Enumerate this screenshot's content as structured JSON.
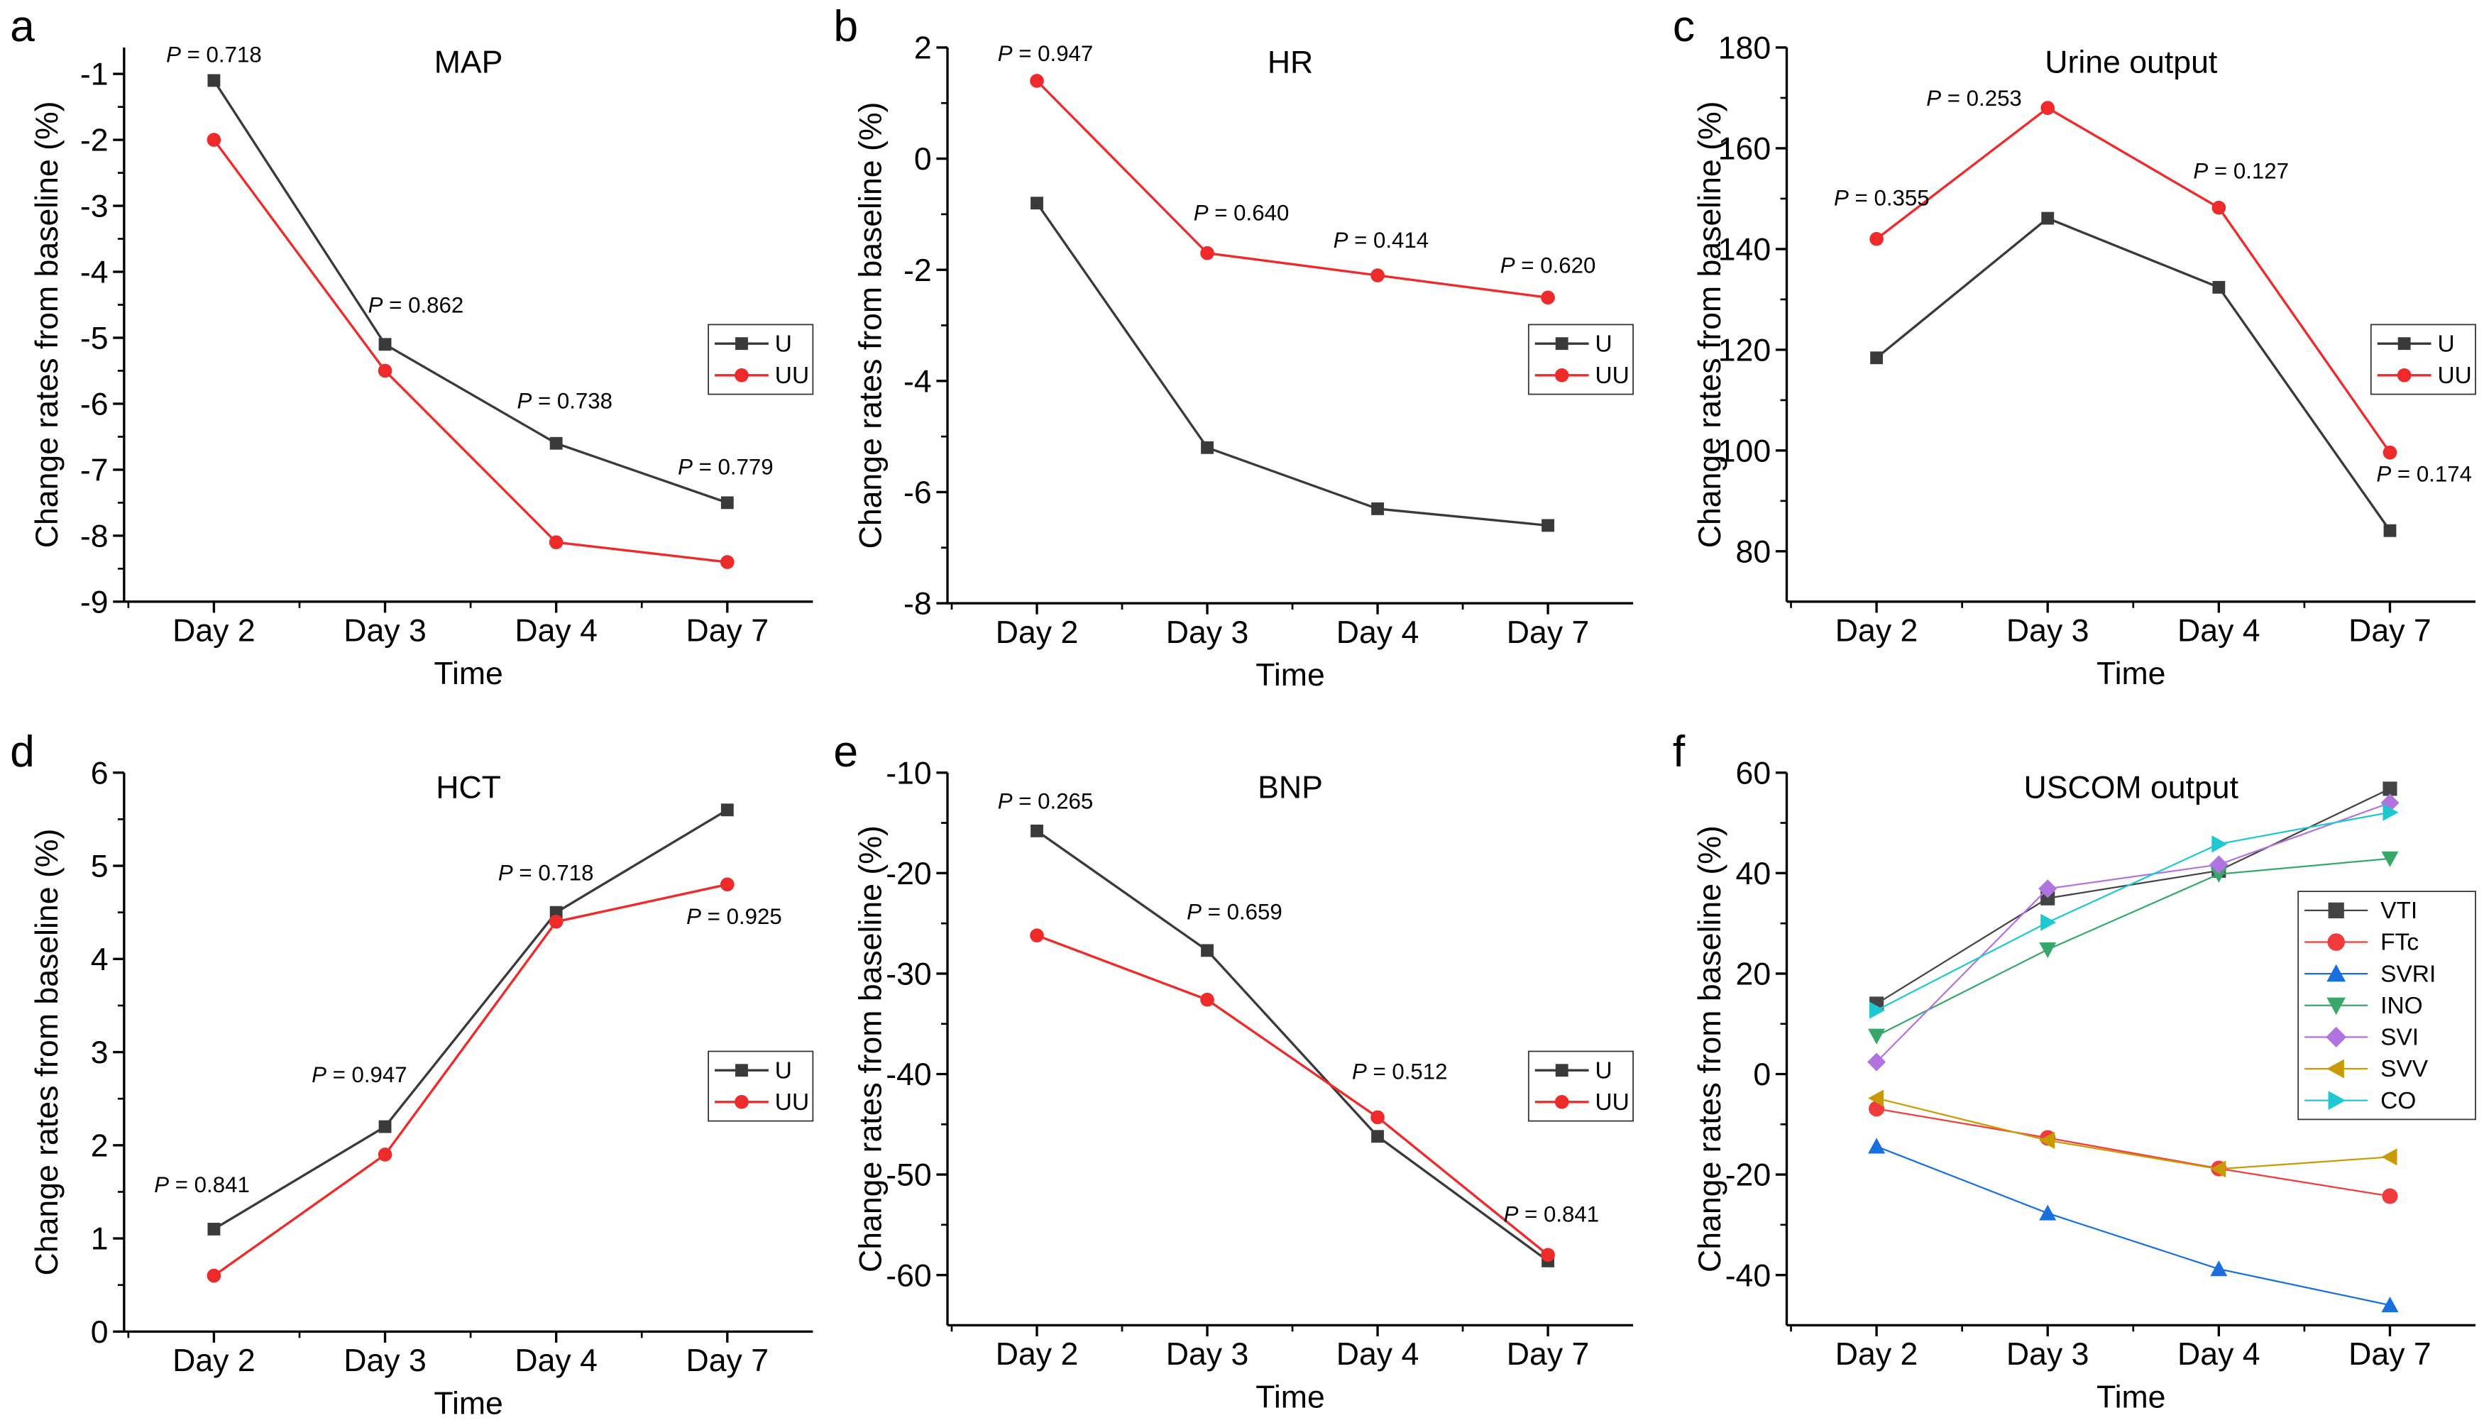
{
  "figure": {
    "ylabel": "Change rates from baseline (%)",
    "xlabel": "Time",
    "categories": [
      "Day 2",
      "Day 3",
      "Day 4",
      "Day 7"
    ]
  },
  "colors": {
    "U": "#3a3a3a",
    "UU": "#ee2a2a",
    "VTI": "#444444",
    "FTc": "#f03c3c",
    "SVRI": "#1a6fdf",
    "INO": "#37a86a",
    "SVI": "#b074e0",
    "SVV": "#c99a06",
    "CO": "#1ec8d0"
  },
  "chart_data": [
    {
      "panel": "a",
      "title": "MAP",
      "type": "line",
      "xlabel": "Time",
      "ylabel": "Change rates from baseline (%)",
      "categories": [
        "Day 2",
        "Day 3",
        "Day 4",
        "Day 7"
      ],
      "ylim": [
        -9,
        -0.6
      ],
      "yticks": [
        -9,
        -8,
        -7,
        -6,
        -5,
        -4,
        -3,
        -2,
        -1
      ],
      "legend": "right",
      "series": [
        {
          "name": "U",
          "marker": "square",
          "values": [
            -1.1,
            -5.1,
            -6.6,
            -7.5
          ]
        },
        {
          "name": "UU",
          "marker": "circle",
          "values": [
            -2.0,
            -5.5,
            -8.1,
            -8.4
          ]
        }
      ],
      "annotations": [
        {
          "text": "P = 0.718",
          "x": 0,
          "y": -0.7
        },
        {
          "text": "P = 0.862",
          "x": 1.18,
          "y": -4.5
        },
        {
          "text": "P = 0.738",
          "x": 2.05,
          "y": -5.95
        },
        {
          "text": "P = 0.779",
          "x": 2.99,
          "y": -6.95
        }
      ]
    },
    {
      "panel": "b",
      "title": "HR",
      "type": "line",
      "xlabel": "Time",
      "ylabel": "Change rates from baseline (%)",
      "categories": [
        "Day 2",
        "Day 3",
        "Day 4",
        "Day 7"
      ],
      "ylim": [
        -8,
        2
      ],
      "yticks": [
        -8,
        -6,
        -4,
        -2,
        0,
        2
      ],
      "legend": "right",
      "series": [
        {
          "name": "U",
          "marker": "square",
          "values": [
            -0.8,
            -5.2,
            -6.3,
            -6.6
          ]
        },
        {
          "name": "UU",
          "marker": "circle",
          "values": [
            1.4,
            -1.7,
            -2.1,
            -2.5
          ]
        }
      ],
      "annotations": [
        {
          "text": "P = 0.947",
          "x": 0.05,
          "y": 1.9
        },
        {
          "text": "P = 0.640",
          "x": 1.2,
          "y": -0.97
        },
        {
          "text": "P = 0.414",
          "x": 2.02,
          "y": -1.46
        },
        {
          "text": "P = 0.620",
          "x": 3.0,
          "y": -1.91
        }
      ]
    },
    {
      "panel": "c",
      "title": "Urine output",
      "type": "line",
      "xlabel": "Time",
      "ylabel": "Change rates from baseline (%)",
      "categories": [
        "Day 2",
        "Day 3",
        "Day 4",
        "Day 7"
      ],
      "ylim": [
        70,
        180
      ],
      "yticks": [
        80,
        100,
        120,
        140,
        160,
        180
      ],
      "legend": "right",
      "series": [
        {
          "name": "U",
          "marker": "square",
          "values": [
            118.4,
            146.1,
            132.4,
            84.1
          ]
        },
        {
          "name": "UU",
          "marker": "circle",
          "values": [
            142.0,
            168.0,
            148.2,
            99.6
          ]
        }
      ],
      "annotations": [
        {
          "text": "P = 0.355",
          "x": 0.03,
          "y": 150.2
        },
        {
          "text": "P = 0.253",
          "x": 0.57,
          "y": 170
        },
        {
          "text": "P = 0.127",
          "x": 2.13,
          "y": 155.6
        },
        {
          "text": "P = 0.174",
          "x": 3.2,
          "y": 95.4
        }
      ]
    },
    {
      "panel": "d",
      "title": "HCT",
      "type": "line",
      "xlabel": "Time",
      "ylabel": "Change rates from baseline (%)",
      "categories": [
        "Day 2",
        "Day 3",
        "Day 4",
        "Day 7"
      ],
      "ylim": [
        0,
        6
      ],
      "yticks": [
        0,
        1,
        2,
        3,
        4,
        5,
        6
      ],
      "legend": "right",
      "series": [
        {
          "name": "U",
          "marker": "square",
          "values": [
            1.1,
            2.2,
            4.5,
            5.6
          ]
        },
        {
          "name": "UU",
          "marker": "circle",
          "values": [
            0.6,
            1.9,
            4.4,
            4.8
          ]
        }
      ],
      "annotations": [
        {
          "text": "P = 0.841",
          "x": -0.07,
          "y": 1.58
        },
        {
          "text": "P = 0.947",
          "x": 0.85,
          "y": 2.76
        },
        {
          "text": "P = 0.718",
          "x": 1.94,
          "y": 4.93
        },
        {
          "text": "P = 0.925",
          "x": 3.04,
          "y": 4.46
        }
      ]
    },
    {
      "panel": "e",
      "title": "BNP",
      "type": "line",
      "xlabel": "Time",
      "ylabel": "Change rates from baseline (%)",
      "categories": [
        "Day 2",
        "Day 3",
        "Day 4",
        "Day 7"
      ],
      "ylim": [
        -65,
        -10
      ],
      "yticks": [
        -60,
        -50,
        -40,
        -30,
        -20,
        -10
      ],
      "legend": "right",
      "series": [
        {
          "name": "U",
          "marker": "square",
          "values": [
            -15.8,
            -27.7,
            -46.2,
            -58.6
          ]
        },
        {
          "name": "UU",
          "marker": "circle",
          "values": [
            -26.2,
            -32.6,
            -44.3,
            -58.0
          ]
        }
      ],
      "annotations": [
        {
          "text": "P = 0.265",
          "x": 0.05,
          "y": -12.8
        },
        {
          "text": "P = 0.659",
          "x": 1.16,
          "y": -23.8
        },
        {
          "text": "P = 0.512",
          "x": 2.13,
          "y": -39.7
        },
        {
          "text": "P = 0.841",
          "x": 3.02,
          "y": -53.9
        }
      ]
    },
    {
      "panel": "f",
      "title": "USCOM output",
      "type": "line",
      "xlabel": "Time",
      "ylabel": "Change rates from baseline (%)",
      "categories": [
        "Day 2",
        "Day 3",
        "Day 4",
        "Day 7"
      ],
      "ylim": [
        -50,
        60
      ],
      "yticks": [
        -40,
        -20,
        0,
        20,
        40,
        60
      ],
      "legend": "right",
      "series": [
        {
          "name": "VTI",
          "marker": "square",
          "values": [
            14.0,
            35.0,
            40.5,
            56.8
          ]
        },
        {
          "name": "FTc",
          "marker": "circle",
          "values": [
            -6.9,
            -12.7,
            -18.8,
            -24.3
          ]
        },
        {
          "name": "SVRI",
          "marker": "triangle-up",
          "values": [
            -14.4,
            -27.7,
            -38.8,
            -46.0
          ]
        },
        {
          "name": "INO",
          "marker": "triangle-down",
          "values": [
            7.6,
            24.8,
            39.8,
            42.9
          ]
        },
        {
          "name": "SVI",
          "marker": "diamond",
          "values": [
            2.4,
            36.9,
            41.7,
            54.0
          ]
        },
        {
          "name": "SVV",
          "marker": "triangle-left",
          "values": [
            -4.8,
            -13.2,
            -18.9,
            -16.5
          ]
        },
        {
          "name": "CO",
          "marker": "triangle-right",
          "values": [
            12.7,
            30.2,
            45.8,
            52.1
          ]
        }
      ],
      "annotations": []
    }
  ]
}
